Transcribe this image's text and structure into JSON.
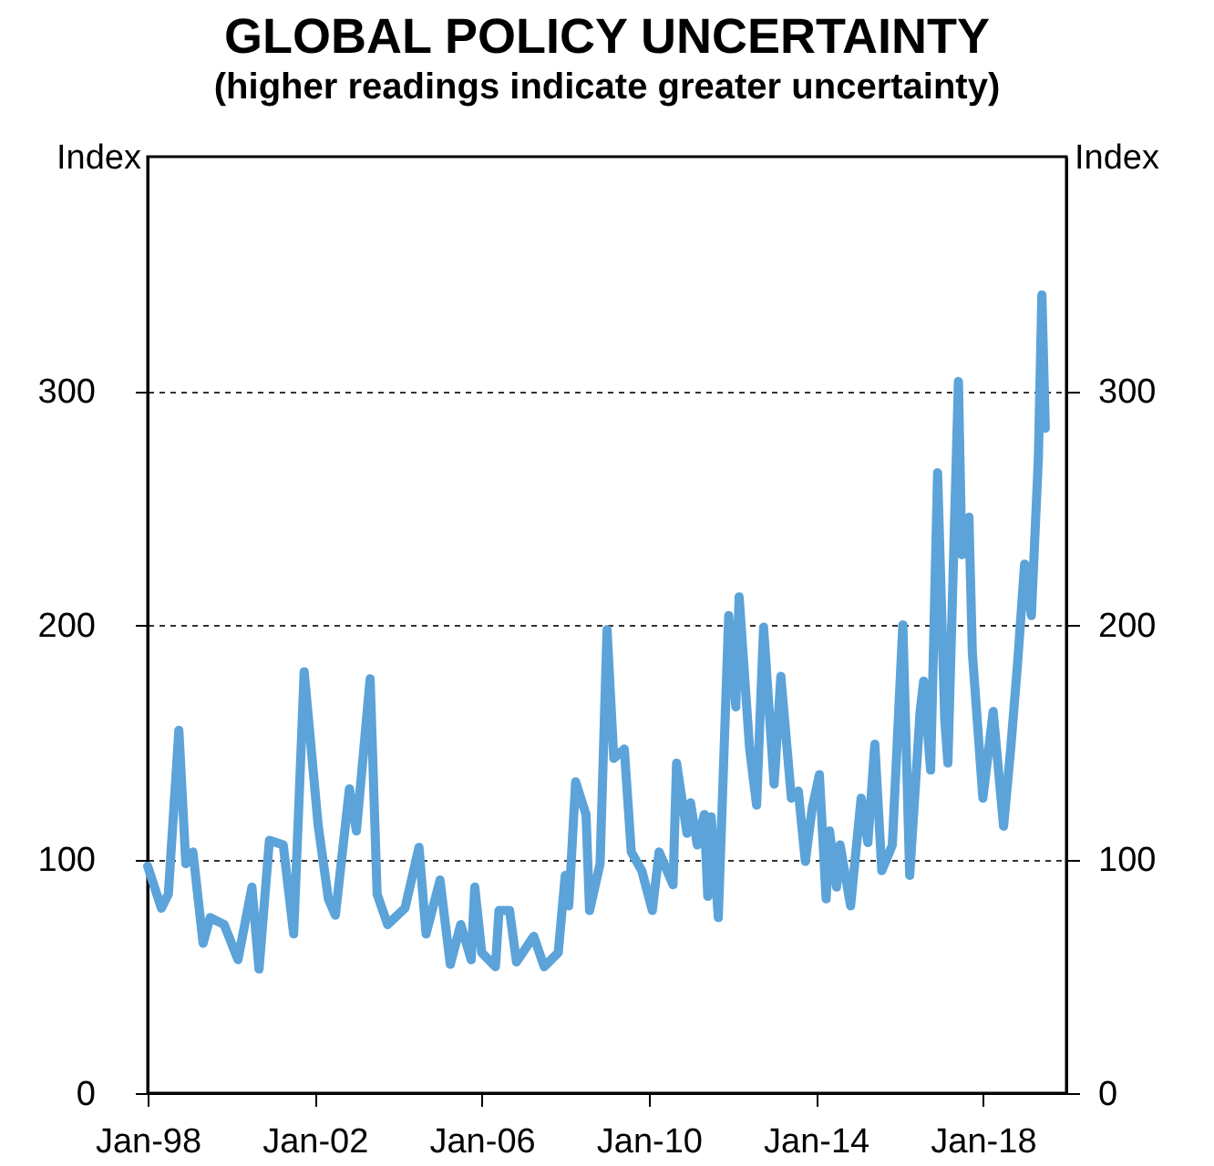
{
  "chart_data": {
    "type": "line",
    "title": "GLOBAL POLICY UNCERTAINTY",
    "subtitle": "(higher readings indicate greater uncertainty)",
    "ylabel": "Index",
    "y2label": "Index",
    "x": [
      "1998-01",
      "1998-05",
      "1998-07",
      "1998-10",
      "1998-12",
      "1999-02",
      "1999-05",
      "1999-07",
      "1999-11",
      "2000-03",
      "2000-07",
      "2000-09",
      "2000-12",
      "2001-04",
      "2001-07",
      "2001-10",
      "2002-02",
      "2002-05",
      "2002-07",
      "2002-11",
      "2003-01",
      "2003-05",
      "2003-07",
      "2003-10",
      "2004-03",
      "2004-07",
      "2004-09",
      "2005-01",
      "2005-04",
      "2005-07",
      "2005-10",
      "2005-11",
      "2006-01",
      "2006-05",
      "2006-06",
      "2006-09",
      "2006-11",
      "2007-04",
      "2007-07",
      "2007-11",
      "2008-01",
      "2008-02",
      "2008-04",
      "2008-07",
      "2008-08",
      "2008-11",
      "2009-01",
      "2009-03",
      "2009-06",
      "2009-08",
      "2009-11",
      "2010-02",
      "2010-04",
      "2010-08",
      "2010-09",
      "2010-12",
      "2011-01",
      "2011-03",
      "2011-05",
      "2011-06",
      "2011-07",
      "2011-09",
      "2011-12",
      "2012-02",
      "2012-03",
      "2012-06",
      "2012-08",
      "2012-10",
      "2013-01",
      "2013-03",
      "2013-06",
      "2013-08",
      "2013-10",
      "2013-12",
      "2014-02",
      "2014-04",
      "2014-05",
      "2014-07",
      "2014-08",
      "2014-11",
      "2015-02",
      "2015-04",
      "2015-06",
      "2015-08",
      "2015-11",
      "2016-02",
      "2016-04",
      "2016-07",
      "2016-08",
      "2016-10",
      "2016-12",
      "2017-02",
      "2017-03",
      "2017-06",
      "2017-07",
      "2017-09",
      "2017-10",
      "2018-01",
      "2018-04",
      "2018-07",
      "2018-09",
      "2018-11",
      "2019-01",
      "2019-03",
      "2019-05",
      "2019-06",
      "2019-07"
    ],
    "series": [
      {
        "color": "#5ba3d9",
        "values": [
          97,
          79,
          85,
          155,
          98,
          103,
          64,
          75,
          72,
          57,
          88,
          53,
          108,
          106,
          68,
          180,
          114,
          83,
          76,
          130,
          112,
          177,
          85,
          72,
          79,
          105,
          68,
          91,
          55,
          72,
          57,
          88,
          60,
          54,
          78,
          78,
          56,
          67,
          54,
          60,
          93,
          80,
          133,
          119,
          78,
          98,
          198,
          143,
          147,
          103,
          95,
          78,
          103,
          89,
          141,
          111,
          124,
          106,
          119,
          84,
          118,
          75,
          204,
          165,
          212,
          147,
          123,
          199,
          132,
          178,
          126,
          129,
          99,
          122,
          136,
          83,
          112,
          88,
          106,
          80,
          126,
          107,
          149,
          95,
          106,
          200,
          93,
          163,
          176,
          138,
          265,
          160,
          141,
          304,
          230,
          246,
          188,
          126,
          163,
          114,
          147,
          184,
          226,
          204,
          271,
          341,
          284
        ]
      }
    ],
    "xlim": [
      "1998-01",
      "2020-01"
    ],
    "xticks": [
      {
        "value": "1998-01",
        "label": "Jan-98"
      },
      {
        "value": "2002-01",
        "label": "Jan-02"
      },
      {
        "value": "2006-01",
        "label": "Jan-06"
      },
      {
        "value": "2010-01",
        "label": "Jan-10"
      },
      {
        "value": "2014-01",
        "label": "Jan-14"
      },
      {
        "value": "2018-01",
        "label": "Jan-18"
      }
    ],
    "ylim": [
      0,
      400
    ],
    "yticks": [
      0,
      100,
      200,
      300
    ],
    "y2lim": [
      0,
      400
    ],
    "y2ticks": [
      0,
      100,
      200,
      300
    ],
    "grid": "y"
  }
}
